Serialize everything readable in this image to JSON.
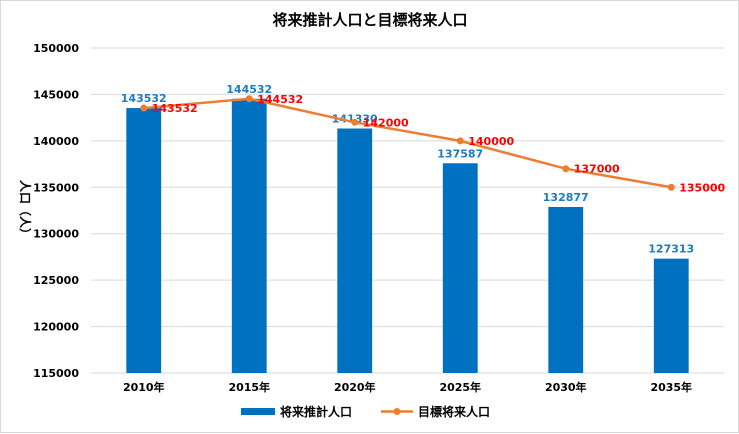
{
  "chart_data": {
    "type": "bar",
    "title": "将来推計人口と目標将来人口",
    "xlabel": "",
    "ylabel": "人口（人）",
    "categories": [
      "2010年",
      "2015年",
      "2020年",
      "2025年",
      "2030年",
      "2035年"
    ],
    "ylim": [
      115000,
      150000
    ],
    "yticks": [
      115000,
      120000,
      125000,
      130000,
      135000,
      140000,
      145000,
      150000
    ],
    "grid": true,
    "legend_position": "bottom",
    "series": [
      {
        "name": "将来推計人口",
        "type": "bar",
        "color": "#0070c0",
        "label_color": "#1f7bbd",
        "values": [
          143532,
          144532,
          141330,
          137587,
          132877,
          127313
        ]
      },
      {
        "name": "目標将来人口",
        "type": "line",
        "color": "#ed7d31",
        "label_color": "#ff0000",
        "values": [
          143532,
          144532,
          142000,
          140000,
          137000,
          135000
        ]
      }
    ]
  }
}
